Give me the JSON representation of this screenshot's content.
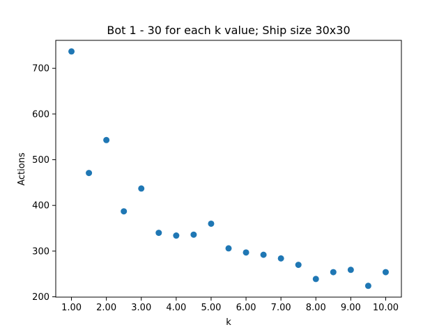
{
  "chart_data": {
    "type": "scatter",
    "title": "Bot 1 - 30 for each k value; Ship size 30x30",
    "xlabel": "k",
    "ylabel": "Actions",
    "x": [
      1.0,
      1.5,
      2.0,
      2.5,
      3.0,
      3.5,
      4.0,
      4.5,
      5.0,
      5.5,
      6.0,
      6.5,
      7.0,
      7.5,
      8.0,
      8.5,
      9.0,
      9.5,
      10.0
    ],
    "y": [
      737,
      471,
      543,
      387,
      437,
      340,
      334,
      336,
      360,
      306,
      297,
      292,
      284,
      270,
      239,
      254,
      259,
      224,
      254
    ],
    "x_ticks": [
      1.0,
      2.0,
      3.0,
      4.0,
      5.0,
      6.0,
      7.0,
      8.0,
      9.0,
      10.0
    ],
    "x_tick_labels": [
      "1.00",
      "2.00",
      "3.00",
      "4.00",
      "5.00",
      "6.00",
      "7.00",
      "8.00",
      "9.00",
      "10.00"
    ],
    "y_ticks": [
      200,
      300,
      400,
      500,
      600,
      700
    ],
    "y_tick_labels": [
      "200",
      "300",
      "400",
      "500",
      "600",
      "700"
    ],
    "xlim": [
      0.55,
      10.45
    ],
    "ylim": [
      199.3,
      761.2
    ],
    "marker_color": "#1f77b4",
    "grid": false,
    "legend": "none"
  }
}
